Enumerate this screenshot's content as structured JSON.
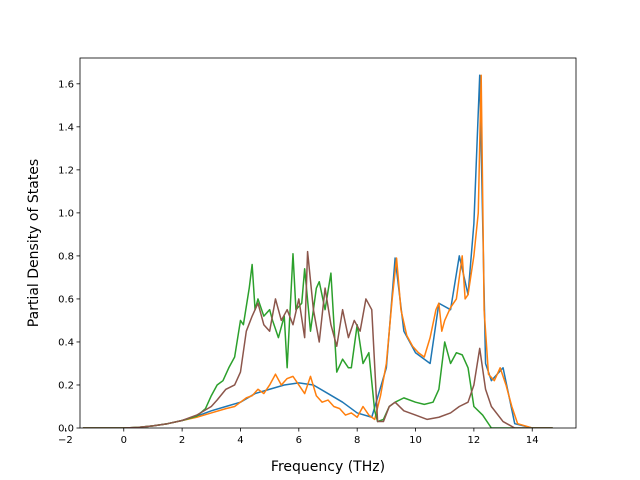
{
  "chart_data": {
    "type": "line",
    "xlabel": "Frequency (THz)",
    "ylabel": "Partial Density of States",
    "xlim": [
      -1.5,
      15.5
    ],
    "ylim": [
      0.0,
      1.72
    ],
    "xticks": [
      -2,
      0,
      2,
      4,
      6,
      8,
      10,
      12,
      14
    ],
    "yticks": [
      0.0,
      0.2,
      0.4,
      0.6,
      0.8,
      1.0,
      1.2,
      1.4,
      1.6
    ],
    "grid": false,
    "legend": "none",
    "series": [
      {
        "color": "#1f77b4",
        "x": [
          -1.4,
          0.0,
          0.5,
          1.0,
          1.5,
          2.0,
          2.5,
          3.0,
          3.5,
          4.0,
          4.5,
          5.0,
          5.5,
          6.0,
          6.5,
          7.0,
          7.5,
          8.0,
          8.5,
          9.0,
          9.3,
          9.6,
          10.0,
          10.5,
          10.8,
          11.2,
          11.5,
          11.8,
          12.0,
          12.2,
          12.4,
          12.6,
          13.0,
          13.4,
          14.0,
          14.7
        ],
        "y": [
          0.0,
          0.0,
          0.003,
          0.01,
          0.02,
          0.035,
          0.055,
          0.08,
          0.1,
          0.12,
          0.16,
          0.18,
          0.2,
          0.21,
          0.2,
          0.16,
          0.12,
          0.07,
          0.05,
          0.28,
          0.79,
          0.45,
          0.35,
          0.3,
          0.58,
          0.55,
          0.8,
          0.62,
          0.95,
          1.64,
          0.3,
          0.22,
          0.28,
          0.02,
          0.0,
          0.0
        ]
      },
      {
        "color": "#ff7f0e",
        "x": [
          -1.4,
          0.0,
          0.5,
          1.0,
          1.5,
          2.0,
          2.5,
          3.0,
          3.5,
          3.8,
          4.0,
          4.2,
          4.4,
          4.6,
          4.8,
          5.0,
          5.2,
          5.4,
          5.6,
          5.8,
          6.0,
          6.2,
          6.4,
          6.6,
          6.8,
          7.0,
          7.2,
          7.4,
          7.6,
          7.8,
          8.0,
          8.2,
          8.4,
          8.6,
          8.8,
          9.0,
          9.2,
          9.35,
          9.5,
          9.7,
          9.9,
          10.1,
          10.3,
          10.5,
          10.7,
          10.8,
          10.9,
          11.0,
          11.2,
          11.4,
          11.5,
          11.6,
          11.7,
          11.8,
          12.0,
          12.15,
          12.25,
          12.35,
          12.5,
          12.7,
          12.9,
          13.1,
          13.3,
          13.5,
          14.0,
          14.7
        ],
        "y": [
          0.0,
          0.0,
          0.003,
          0.01,
          0.02,
          0.035,
          0.05,
          0.07,
          0.09,
          0.1,
          0.12,
          0.14,
          0.15,
          0.18,
          0.16,
          0.2,
          0.25,
          0.2,
          0.23,
          0.24,
          0.2,
          0.16,
          0.24,
          0.15,
          0.12,
          0.13,
          0.1,
          0.09,
          0.06,
          0.07,
          0.05,
          0.1,
          0.06,
          0.04,
          0.15,
          0.3,
          0.6,
          0.79,
          0.55,
          0.43,
          0.38,
          0.35,
          0.33,
          0.42,
          0.55,
          0.58,
          0.45,
          0.5,
          0.56,
          0.6,
          0.7,
          0.8,
          0.6,
          0.62,
          0.8,
          1.0,
          1.64,
          0.55,
          0.25,
          0.22,
          0.28,
          0.2,
          0.1,
          0.02,
          0.0,
          0.0
        ]
      },
      {
        "color": "#2ca02c",
        "x": [
          -1.4,
          0.0,
          0.5,
          1.0,
          1.5,
          2.0,
          2.5,
          2.8,
          3.0,
          3.2,
          3.4,
          3.6,
          3.8,
          4.0,
          4.1,
          4.3,
          4.4,
          4.5,
          4.6,
          4.8,
          5.0,
          5.1,
          5.3,
          5.5,
          5.6,
          5.8,
          5.9,
          6.1,
          6.2,
          6.4,
          6.6,
          6.7,
          6.9,
          7.1,
          7.3,
          7.5,
          7.7,
          7.8,
          8.0,
          8.2,
          8.4,
          8.6,
          8.7,
          8.9,
          9.1,
          9.3,
          9.6,
          10.0,
          10.3,
          10.6,
          10.8,
          11.0,
          11.2,
          11.4,
          11.6,
          11.8,
          12.0,
          12.3,
          12.6,
          13.0,
          13.4,
          14.0,
          14.7
        ],
        "y": [
          0.0,
          0.0,
          0.003,
          0.01,
          0.02,
          0.035,
          0.055,
          0.09,
          0.15,
          0.2,
          0.22,
          0.28,
          0.33,
          0.5,
          0.48,
          0.65,
          0.76,
          0.55,
          0.6,
          0.52,
          0.55,
          0.5,
          0.42,
          0.52,
          0.28,
          0.81,
          0.55,
          0.58,
          0.74,
          0.45,
          0.65,
          0.68,
          0.55,
          0.72,
          0.26,
          0.32,
          0.28,
          0.28,
          0.48,
          0.3,
          0.35,
          0.08,
          0.03,
          0.04,
          0.1,
          0.12,
          0.14,
          0.12,
          0.11,
          0.12,
          0.18,
          0.4,
          0.3,
          0.35,
          0.34,
          0.28,
          0.1,
          0.06,
          0.0,
          0.0,
          0.0,
          0.0,
          0.0
        ]
      },
      {
        "color": "#8c564b",
        "x": [
          -1.4,
          0.0,
          0.5,
          1.0,
          1.5,
          2.0,
          2.5,
          3.0,
          3.2,
          3.5,
          3.8,
          4.0,
          4.2,
          4.4,
          4.6,
          4.8,
          5.0,
          5.2,
          5.4,
          5.6,
          5.8,
          6.0,
          6.2,
          6.3,
          6.5,
          6.7,
          6.9,
          7.1,
          7.3,
          7.5,
          7.7,
          7.9,
          8.1,
          8.3,
          8.5,
          8.7,
          8.9,
          9.1,
          9.3,
          9.6,
          10.0,
          10.4,
          10.8,
          11.2,
          11.5,
          11.8,
          12.0,
          12.2,
          12.4,
          12.6,
          13.0,
          13.4,
          14.0,
          14.7
        ],
        "y": [
          0.0,
          0.0,
          0.003,
          0.01,
          0.02,
          0.035,
          0.06,
          0.1,
          0.13,
          0.18,
          0.2,
          0.26,
          0.45,
          0.52,
          0.58,
          0.48,
          0.45,
          0.6,
          0.5,
          0.55,
          0.48,
          0.6,
          0.42,
          0.82,
          0.55,
          0.4,
          0.65,
          0.48,
          0.38,
          0.55,
          0.42,
          0.5,
          0.45,
          0.6,
          0.55,
          0.03,
          0.03,
          0.1,
          0.12,
          0.08,
          0.06,
          0.04,
          0.05,
          0.07,
          0.1,
          0.12,
          0.2,
          0.37,
          0.18,
          0.1,
          0.03,
          0.0,
          0.0,
          0.0
        ]
      }
    ]
  }
}
